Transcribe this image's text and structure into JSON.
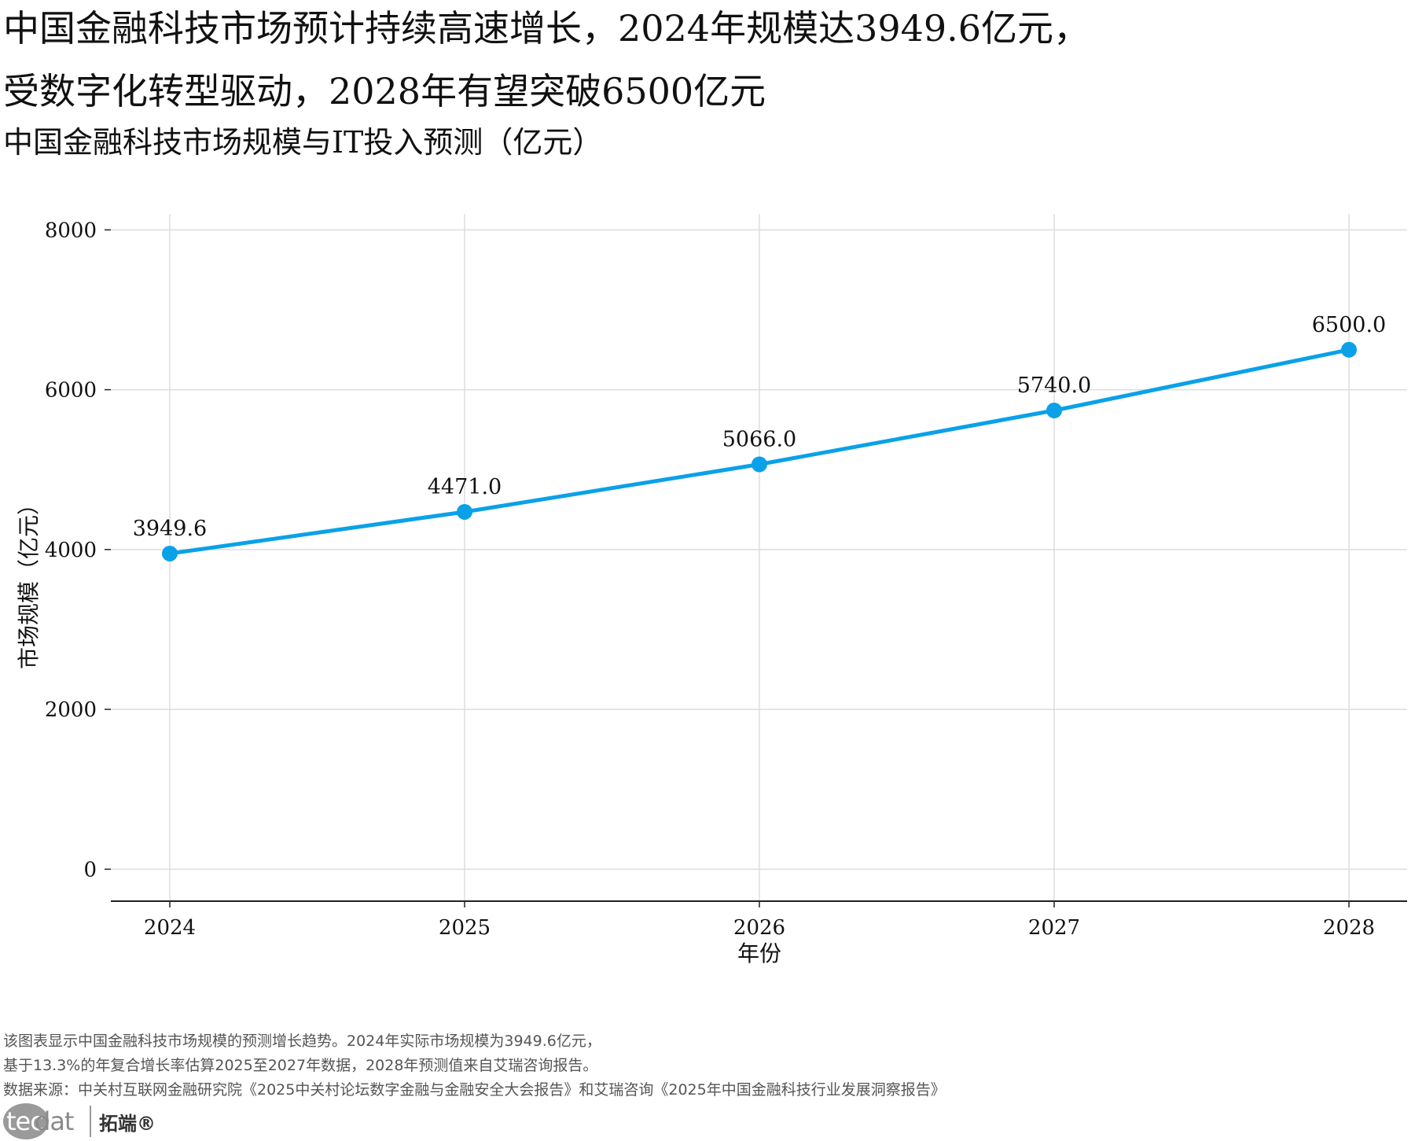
{
  "header": {
    "headline_line1": "中国金融科技市场预计持续高速增长，2024年规模达3949.6亿元，",
    "headline_line2": "受数字化转型驱动，2028年有望突破6500亿元",
    "subtitle": "中国金融科技市场规模与IT投入预测（亿元）"
  },
  "chart_data": {
    "type": "line",
    "title": "中国金融科技市场规模与IT投入预测（亿元）",
    "xlabel": "年份",
    "ylabel": "市场规模（亿元）",
    "categories": [
      "2024",
      "2025",
      "2026",
      "2027",
      "2028"
    ],
    "series": [
      {
        "name": "市场规模",
        "values": [
          3949.6,
          4471.0,
          5066.0,
          5740.0,
          6500.0
        ],
        "labels": [
          "3949.6",
          "4471.0",
          "5066.0",
          "5740.0",
          "6500.0"
        ]
      }
    ],
    "yticks": [
      0,
      2000,
      4000,
      6000,
      8000
    ],
    "ylim": [
      -400,
      8200
    ],
    "grid": true,
    "line_color": "#0aa1e8",
    "grid_color": "#dddddd"
  },
  "notes": {
    "line1": "该图表显示中国金融科技市场规模的预测增长趋势。2024年实际市场规模为3949.6亿元，",
    "line2": "基于13.3%的年复合增长率估算2025至2027年数据，2028年预测值来自艾瑞咨询报告。",
    "line3": "数据来源：中关村互联网金融研究院《2025中关村论坛数字金融与金融安全大会报告》和艾瑞咨询《2025年中国金融科技行业发展洞察报告》"
  },
  "logo": {
    "word_main": "tec",
    "word_tail": "dat",
    "name_cn": "拓端®"
  }
}
